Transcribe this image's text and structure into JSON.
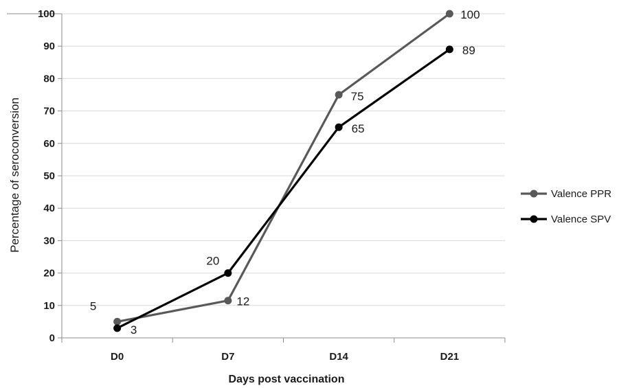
{
  "chart_data": {
    "type": "line",
    "title": "",
    "xlabel": "Days post vaccination",
    "ylabel": "Percentage of seroconversion",
    "categories": [
      "D0",
      "D7",
      "D14",
      "D21"
    ],
    "ylim": [
      0,
      100
    ],
    "yticks": [
      0,
      10,
      20,
      30,
      40,
      50,
      60,
      70,
      80,
      90,
      100
    ],
    "grid": "horizontal",
    "legend_position": "right",
    "series": [
      {
        "name": "Valence PPR",
        "color": "#595959",
        "values": [
          5,
          11.5,
          75,
          100
        ],
        "labels": [
          "5",
          "12",
          "75",
          "100"
        ]
      },
      {
        "name": "Valence SPV",
        "color": "#000000",
        "values": [
          3,
          20,
          65,
          89
        ],
        "labels": [
          "3",
          "20",
          "65",
          "89"
        ]
      }
    ]
  }
}
